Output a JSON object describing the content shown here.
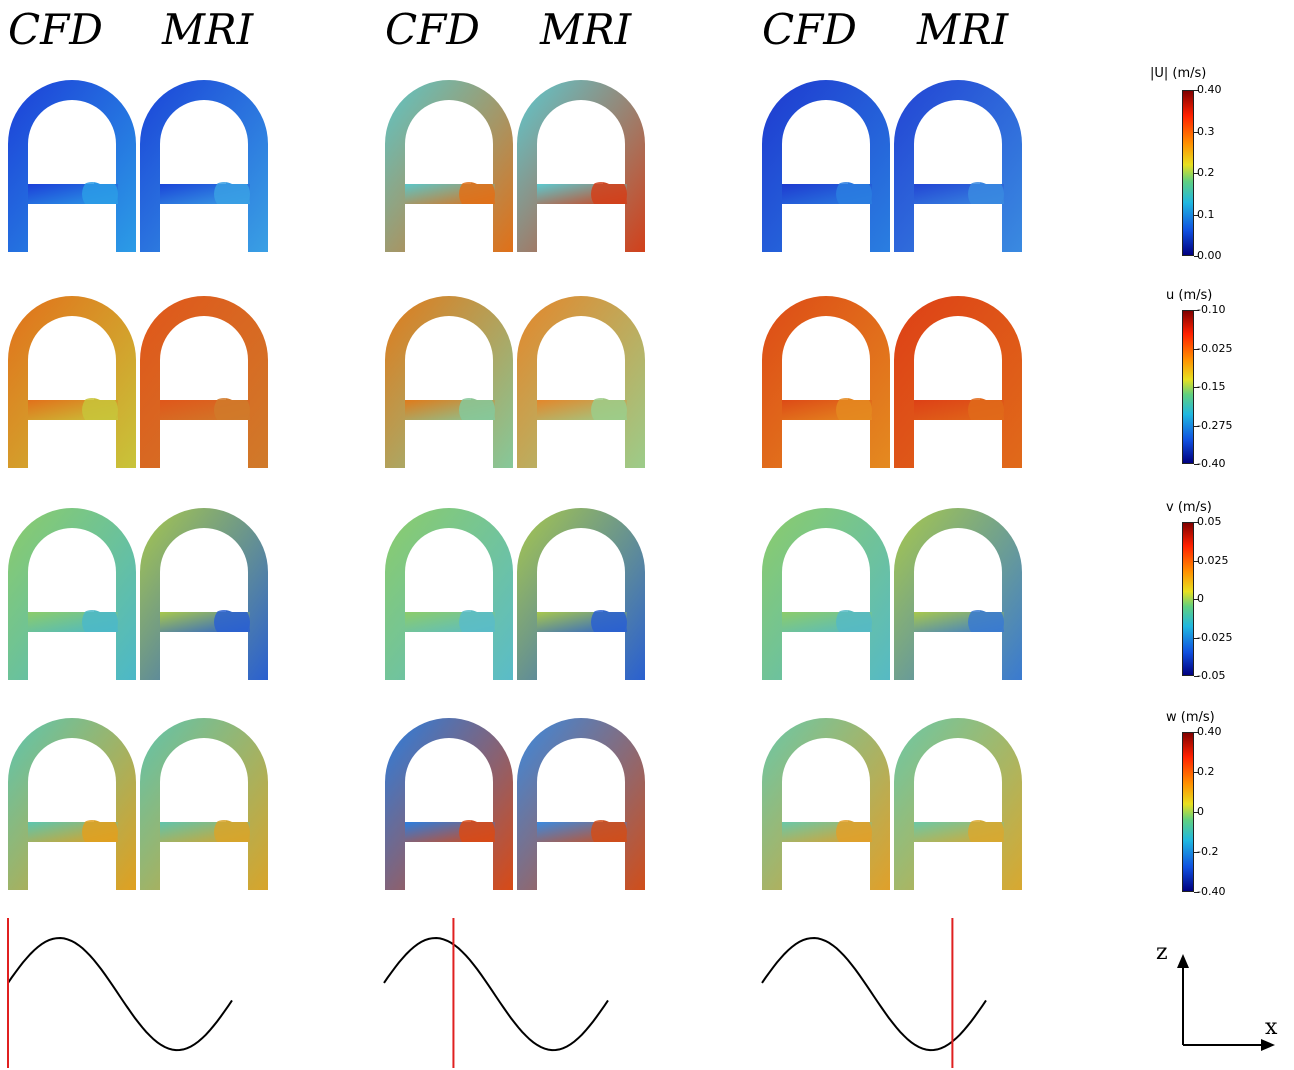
{
  "headers": {
    "g1_cfd": "CFD",
    "g1_mri": "MRI",
    "g2_cfd": "CFD",
    "g2_mri": "MRI",
    "g3_cfd": "CFD",
    "g3_mri": "MRI"
  },
  "colorbars": [
    {
      "title": "|U| (m/s)",
      "ticks": [
        "0.40",
        "0.3",
        "0.2",
        "0.1",
        "0.00"
      ]
    },
    {
      "title": "u (m/s)",
      "ticks": [
        "-0.10",
        "-0.025",
        "-0.15",
        "-0.275",
        "-0.40"
      ]
    },
    {
      "title": "v (m/s)",
      "ticks": [
        "0.05",
        "0.025",
        "0",
        "-0.025",
        "-0.05"
      ]
    },
    {
      "title": "w (m/s)",
      "ticks": [
        "0.40",
        "0.2",
        "0",
        "-0.2",
        "-0.40"
      ]
    }
  ],
  "axes": {
    "z_label": "z",
    "x_label": "x"
  },
  "colors": {
    "jet_high": "#8b0000",
    "jet_low": "#00008b",
    "marker": "#e02020",
    "curve": "#000000"
  },
  "field_styles": [
    [
      [
        "#1c3fd8",
        "#2c9ce6"
      ],
      [
        "#1a44d8",
        "#3aa0e4"
      ],
      [
        "#5cc6c8",
        "#e07018"
      ],
      [
        "#5ccad0",
        "#d2401a"
      ],
      [
        "#1e3ad0",
        "#2a7ee0"
      ],
      [
        "#2244d4",
        "#3a8ae0"
      ]
    ],
    [
      [
        "#e2701a",
        "#c8c43a"
      ],
      [
        "#e0561a",
        "#d07a2a"
      ],
      [
        "#e07a1a",
        "#86c89a"
      ],
      [
        "#e4862a",
        "#9ccc8a"
      ],
      [
        "#dd4a16",
        "#e48a20"
      ],
      [
        "#dd4016",
        "#e06a1a"
      ]
    ],
    [
      [
        "#8ccc6a",
        "#4cb8c8"
      ],
      [
        "#a8c84c",
        "#2a60d0"
      ],
      [
        "#8ccc6a",
        "#5abcc8"
      ],
      [
        "#a8c84c",
        "#2a60d0"
      ],
      [
        "#8ccc6a",
        "#56bac4"
      ],
      [
        "#a8c84c",
        "#3a7ad0"
      ]
    ],
    [
      [
        "#5cc6b0",
        "#e0a020"
      ],
      [
        "#60c4ac",
        "#d8a42a"
      ],
      [
        "#2a7ee0",
        "#d84a16"
      ],
      [
        "#3a8ae0",
        "#d04e1a"
      ],
      [
        "#6ac8a8",
        "#e0a02a"
      ],
      [
        "#6cc8a6",
        "#d8a830"
      ]
    ]
  ],
  "waveform": {
    "series_x": [
      0,
      0.25,
      0.5,
      0.75,
      1.0
    ],
    "description_free": true
  },
  "time_markers": [
    0.0,
    0.31,
    0.85
  ]
}
